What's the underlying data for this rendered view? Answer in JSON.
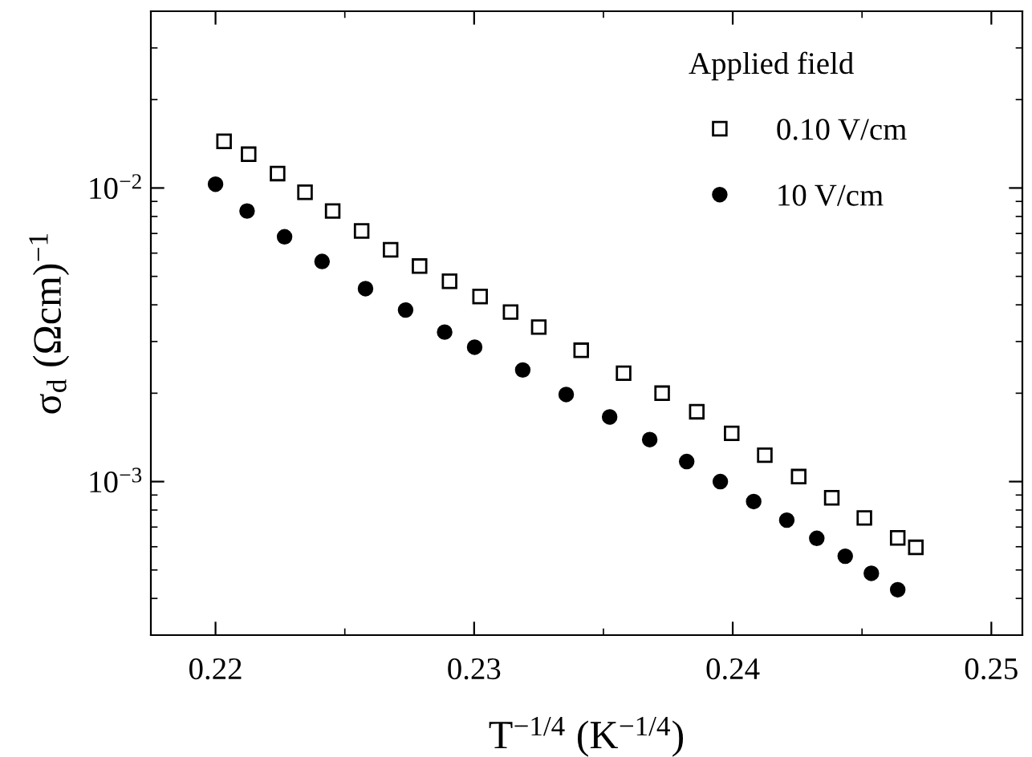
{
  "chart_data": {
    "type": "scatter",
    "xlabel": "T$^{−1/4}$ (K$^{−1/4}$)",
    "ylabel": "σ$_{d}$ (Ωcm)$^{−1}$",
    "legend_title": "Applied field",
    "legend": "top right",
    "log": "y",
    "grid": false,
    "xlim": [
      0.2175,
      0.2512
    ],
    "xticks": [
      0.22,
      0.23,
      0.24,
      0.25
    ],
    "ylim": [
      0.0003,
      0.04
    ],
    "yticks": [
      {
        "value": 0.001,
        "label": "10$^{−3}$"
      },
      {
        "value": 0.01,
        "label": "10$^{−2}$"
      }
    ],
    "series": [
      {
        "name": "0.10 V/cm",
        "color": "#000000",
        "marker": "square",
        "x": [
          0.22033,
          0.22128,
          0.2224,
          0.22346,
          0.22453,
          0.22565,
          0.22677,
          0.22789,
          0.22905,
          0.23023,
          0.23141,
          0.2325,
          0.23414,
          0.23578,
          0.23727,
          0.23861,
          0.23996,
          0.24124,
          0.24255,
          0.24383,
          0.24509,
          0.24638,
          0.24708
        ],
        "values": [
          0.01442,
          0.01303,
          0.0112,
          0.00967,
          0.00835,
          0.00714,
          0.00616,
          0.00542,
          0.00481,
          0.00427,
          0.00378,
          0.00336,
          0.0028,
          0.00234,
          0.002,
          0.00173,
          0.00146,
          0.00123,
          0.00104,
          0.000881,
          0.000752,
          0.000643,
          0.000597
        ]
      },
      {
        "name": "10 V/cm",
        "color": "#000000",
        "marker": "circle",
        "x": [
          0.22,
          0.22122,
          0.22267,
          0.22412,
          0.2258,
          0.22735,
          0.22886,
          0.23002,
          0.23188,
          0.23356,
          0.23524,
          0.23679,
          0.23822,
          0.23952,
          0.24081,
          0.24209,
          0.24325,
          0.24435,
          0.24536,
          0.24638
        ],
        "values": [
          0.0103,
          0.00835,
          0.00682,
          0.00562,
          0.00454,
          0.00384,
          0.00323,
          0.00287,
          0.0024,
          0.00198,
          0.00166,
          0.00139,
          0.00117,
          0.001,
          0.000855,
          0.000739,
          0.000641,
          0.000557,
          0.000487,
          0.000428
        ]
      }
    ]
  }
}
